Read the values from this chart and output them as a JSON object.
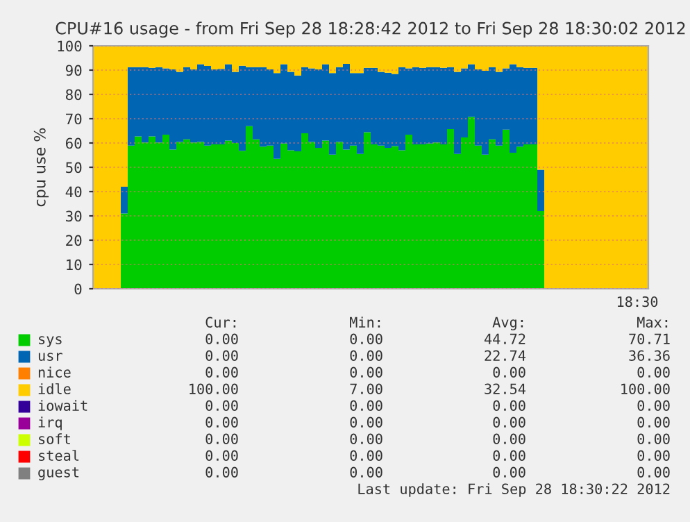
{
  "chart_data": {
    "type": "area",
    "stacked": true,
    "title": "CPU#16 usage - from Fri Sep 28 18:28:42 2012 to Fri Sep 28 18:30:02 2012",
    "ylabel": "cpu use %",
    "categories": [
      null,
      null,
      null,
      null,
      null,
      null,
      null,
      null,
      null,
      null,
      null,
      null,
      null,
      null,
      null,
      null,
      null,
      null,
      null,
      null,
      null,
      null,
      null,
      null,
      null,
      null,
      null,
      null,
      null,
      null,
      null,
      null,
      null,
      null,
      null,
      null,
      null,
      null,
      null,
      null,
      null,
      null,
      null,
      null,
      null,
      null,
      null,
      null,
      null,
      null,
      null,
      null,
      null,
      null,
      null,
      null,
      null,
      null,
      null,
      null,
      null,
      null,
      null,
      null,
      null,
      null,
      null,
      null,
      null,
      null,
      null,
      null,
      null,
      null,
      null,
      null,
      null,
      null,
      null,
      null
    ],
    "ylim": [
      0,
      100
    ],
    "yticks": [
      0,
      10,
      20,
      30,
      40,
      50,
      60,
      70,
      80,
      90,
      100
    ],
    "grid": "y",
    "legend": "bottom",
    "series": [
      {
        "name": "sys",
        "color": "#00cc00",
        "values": [
          0,
          0,
          0,
          0,
          31,
          58.9,
          62.7,
          60.2,
          62.7,
          60.2,
          63.4,
          57.3,
          60.4,
          61.5,
          60.2,
          60.4,
          58.9,
          59.4,
          59.4,
          61.0,
          60.0,
          56.8,
          66.9,
          61.5,
          58.5,
          58.9,
          53.5,
          59.8,
          57.0,
          56.6,
          64.0,
          60.4,
          58.0,
          61.0,
          55.2,
          60.4,
          57.3,
          58.9,
          55.5,
          64.4,
          59.4,
          58.9,
          58.0,
          58.7,
          57.0,
          63.4,
          59.4,
          59.4,
          59.8,
          60.2,
          59.4,
          65.7,
          55.5,
          62.3,
          70.7,
          58.9,
          55.2,
          61.5,
          58.9,
          65.5,
          56.0,
          58.5,
          59.4,
          59.4,
          32,
          0,
          0,
          0,
          0,
          0,
          0,
          0,
          0,
          0,
          0,
          0,
          0,
          0,
          0,
          0
        ]
      },
      {
        "name": "usr",
        "color": "#0066b3",
        "values": [
          0,
          0,
          0,
          0,
          11,
          32.3,
          28.5,
          31.0,
          28.2,
          31.0,
          27.3,
          33.0,
          28.9,
          29.7,
          30.1,
          32.0,
          32.8,
          30.9,
          31.1,
          31.4,
          29.3,
          35.0,
          24.3,
          29.7,
          32.7,
          31.4,
          35.3,
          32.6,
          32.3,
          31.2,
          27.2,
          30.3,
          32.3,
          31.4,
          33.6,
          30.8,
          35.3,
          29.9,
          33.3,
          26.5,
          31.5,
          30.4,
          30.9,
          29.7,
          34.2,
          27.3,
          31.8,
          31.5,
          31.4,
          31.0,
          31.5,
          25.5,
          33.8,
          28.4,
          21.7,
          31.4,
          34.5,
          29.7,
          30.4,
          25.2,
          36.4,
          32.7,
          31.5,
          31.5,
          17,
          0,
          0,
          0,
          0,
          0,
          0,
          0,
          0,
          0,
          0,
          0,
          0,
          0,
          0,
          0
        ]
      },
      {
        "name": "nice",
        "color": "#ff8000",
        "values": [
          null,
          null,
          null,
          null,
          null,
          null,
          null,
          null,
          null,
          null,
          null,
          null,
          null,
          null,
          null,
          null,
          null,
          null,
          null,
          null,
          null,
          null,
          null,
          null,
          null,
          null,
          null,
          null,
          null,
          null,
          null,
          null,
          null,
          null,
          null,
          null,
          null,
          null,
          null,
          null,
          null,
          null,
          null,
          null,
          null,
          null,
          null,
          null,
          null,
          null,
          null,
          null,
          null,
          null,
          null,
          null,
          null,
          null,
          null,
          null,
          null,
          null,
          null,
          null,
          null,
          null,
          null,
          null,
          null,
          null,
          null,
          null,
          null,
          null,
          null,
          null,
          null,
          null,
          null,
          null
        ]
      },
      {
        "name": "idle",
        "color": "#ffcc00",
        "values": [
          100,
          100,
          100,
          100,
          58,
          8.8,
          8.8,
          8.8,
          9.1,
          8.8,
          9.3,
          9.7,
          10.7,
          8.8,
          9.7,
          7.6,
          8.3,
          9.7,
          9.5,
          7.6,
          10.7,
          8.2,
          8.8,
          8.8,
          8.8,
          9.7,
          11.2,
          7.6,
          10.7,
          12.2,
          8.8,
          9.3,
          9.7,
          7.6,
          11.2,
          8.8,
          7.4,
          11.2,
          11.2,
          9.1,
          9.1,
          10.7,
          11.1,
          11.6,
          8.8,
          9.3,
          8.8,
          9.1,
          8.8,
          8.8,
          9.1,
          8.8,
          10.7,
          9.3,
          7.6,
          9.7,
          10.3,
          8.8,
          10.7,
          9.3,
          7.6,
          8.8,
          9.1,
          9.1,
          51,
          100,
          100,
          100,
          100,
          100,
          100,
          100,
          100,
          100,
          100,
          100,
          100,
          100,
          100,
          100
        ]
      },
      {
        "name": "iowait",
        "color": "#330099",
        "values": [
          null,
          null,
          null,
          null,
          null,
          null,
          null,
          null,
          null,
          null,
          null,
          null,
          null,
          null,
          null,
          null,
          null,
          null,
          null,
          null,
          null,
          null,
          null,
          null,
          null,
          null,
          null,
          null,
          null,
          null,
          null,
          null,
          null,
          null,
          null,
          null,
          null,
          null,
          null,
          null,
          null,
          null,
          null,
          null,
          null,
          null,
          null,
          null,
          null,
          null,
          null,
          null,
          null,
          null,
          null,
          null,
          null,
          null,
          null,
          null,
          null,
          null,
          null,
          null,
          null,
          null,
          null,
          null,
          null,
          null,
          null,
          null,
          null,
          null,
          null,
          null,
          null,
          null,
          null,
          null
        ]
      },
      {
        "name": "irq",
        "color": "#990099",
        "values": [
          null,
          null,
          null,
          null,
          null,
          null,
          null,
          null,
          null,
          null,
          null,
          null,
          null,
          null,
          null,
          null,
          null,
          null,
          null,
          null,
          null,
          null,
          null,
          null,
          null,
          null,
          null,
          null,
          null,
          null,
          null,
          null,
          null,
          null,
          null,
          null,
          null,
          null,
          null,
          null,
          null,
          null,
          null,
          null,
          null,
          null,
          null,
          null,
          null,
          null,
          null,
          null,
          null,
          null,
          null,
          null,
          null,
          null,
          null,
          null,
          null,
          null,
          null,
          null,
          null,
          null,
          null,
          null,
          null,
          null,
          null,
          null,
          null,
          null,
          null,
          null,
          null,
          null,
          null,
          null
        ]
      },
      {
        "name": "soft",
        "color": "#ccff00",
        "values": [
          null,
          null,
          null,
          null,
          null,
          null,
          null,
          null,
          null,
          null,
          null,
          null,
          null,
          null,
          null,
          null,
          null,
          null,
          null,
          null,
          null,
          null,
          null,
          null,
          null,
          null,
          null,
          null,
          null,
          null,
          null,
          null,
          null,
          null,
          null,
          null,
          null,
          null,
          null,
          null,
          null,
          null,
          null,
          null,
          null,
          null,
          null,
          null,
          null,
          null,
          null,
          null,
          null,
          null,
          null,
          null,
          null,
          null,
          null,
          null,
          null,
          null,
          null,
          null,
          null,
          null,
          null,
          null,
          null,
          null,
          null,
          null,
          null,
          null,
          null,
          null,
          null,
          null,
          null,
          null
        ]
      },
      {
        "name": "steal",
        "color": "#ff0000",
        "values": [
          null,
          null,
          null,
          null,
          null,
          null,
          null,
          null,
          null,
          null,
          null,
          null,
          null,
          null,
          null,
          null,
          null,
          null,
          null,
          null,
          null,
          null,
          null,
          null,
          null,
          null,
          null,
          null,
          null,
          null,
          null,
          null,
          null,
          null,
          null,
          null,
          null,
          null,
          null,
          null,
          null,
          null,
          null,
          null,
          null,
          null,
          null,
          null,
          null,
          null,
          null,
          null,
          null,
          null,
          null,
          null,
          null,
          null,
          null,
          null,
          null,
          null,
          null,
          null,
          null,
          null,
          null,
          null,
          null,
          null,
          null,
          null,
          null,
          null,
          null,
          null,
          null,
          null,
          null,
          null
        ]
      },
      {
        "name": "guest",
        "color": "#808080",
        "values": [
          null,
          null,
          null,
          null,
          null,
          null,
          null,
          null,
          null,
          null,
          null,
          null,
          null,
          null,
          null,
          null,
          null,
          null,
          null,
          null,
          null,
          null,
          null,
          null,
          null,
          null,
          null,
          null,
          null,
          null,
          null,
          null,
          null,
          null,
          null,
          null,
          null,
          null,
          null,
          null,
          null,
          null,
          null,
          null,
          null,
          null,
          null,
          null,
          null,
          null,
          null,
          null,
          null,
          null,
          null,
          null,
          null,
          null,
          null,
          null,
          null,
          null,
          null,
          null,
          null,
          null,
          null,
          null,
          null,
          null,
          null,
          null,
          null,
          null,
          null,
          null,
          null,
          null,
          null,
          null
        ]
      }
    ],
    "annotations": [
      "18:30",
      "Cur:",
      "Min:",
      "Avg:",
      "Max:",
      "0.00",
      "0.00",
      "44.72",
      "70.71",
      "0.00",
      "0.00",
      "22.74",
      "36.36",
      "0.00",
      "0.00",
      "0.00",
      "0.00",
      "100.00",
      "7.00",
      "32.54",
      "100.00",
      "0.00",
      "0.00",
      "0.00",
      "0.00",
      "0.00",
      "0.00",
      "0.00",
      "0.00",
      "0.00",
      "0.00",
      "0.00",
      "0.00",
      "0.00",
      "0.00",
      "0.00",
      "0.00",
      "0.00",
      "0.00",
      "0.00",
      "0.00",
      "Last update: Fri Sep 28 18:30:22 2012"
    ]
  }
}
